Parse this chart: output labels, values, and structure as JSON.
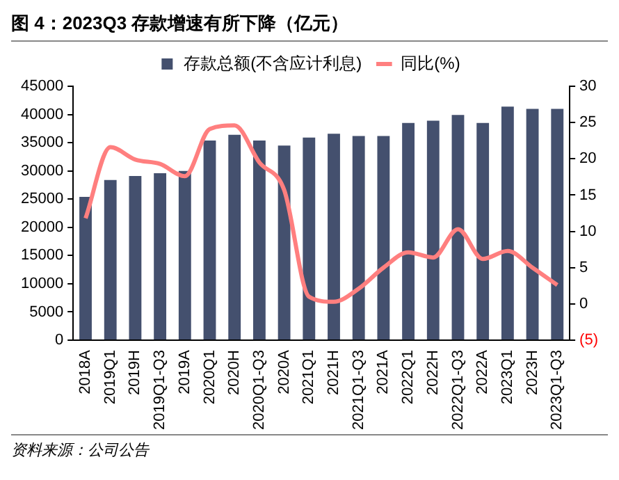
{
  "chart_data": {
    "type": "bar",
    "title": "图 4：2023Q3 存款增速有所下降（亿元）",
    "categories": [
      "2018A",
      "2019Q1",
      "2019H",
      "2019Q1-Q3",
      "2019A",
      "2020Q1",
      "2020H",
      "2020Q1-Q3",
      "2020A",
      "2021Q1",
      "2021H",
      "2021Q1-Q3",
      "2021A",
      "2022Q1",
      "2022H",
      "2022Q1-Q3",
      "2022A",
      "2023Q1",
      "2023H",
      "2023Q1-Q3"
    ],
    "series": [
      {
        "name": "存款总额(不含应计利息)",
        "color": "#44506e",
        "values": [
          25400,
          28400,
          29100,
          29600,
          30000,
          35400,
          36400,
          35400,
          34500,
          35900,
          36600,
          36200,
          36200,
          38500,
          38900,
          39900,
          38500,
          41400,
          41000,
          41000
        ]
      },
      {
        "name": "同比(%)",
        "type": "line",
        "axis": "y2",
        "color": "#ff7f7f",
        "values": [
          11.8,
          21.6,
          19.9,
          19.3,
          17.6,
          24.1,
          24.6,
          19.5,
          15.7,
          1.0,
          0.3,
          2.1,
          5.0,
          7.1,
          6.4,
          10.3,
          6.2,
          7.3,
          5.0,
          2.6
        ]
      }
    ],
    "ylim": [
      0,
      45000
    ],
    "yticks": [
      0,
      5000,
      10000,
      15000,
      20000,
      25000,
      30000,
      35000,
      40000,
      45000
    ],
    "y2lim": [
      -5,
      30
    ],
    "y2ticks": [
      {
        "value": -5,
        "label": "(5)"
      },
      0,
      5,
      10,
      15,
      20,
      25,
      30
    ],
    "legend": "top",
    "grid": false,
    "marker": "none",
    "line_style": "solid",
    "annotations": [
      "资料来源：公司公告"
    ]
  }
}
